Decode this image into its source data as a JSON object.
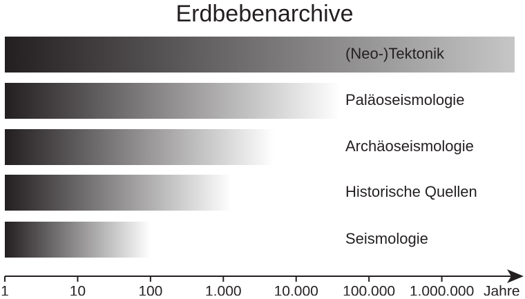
{
  "chart_data": {
    "type": "gradient-bar",
    "title": "Erdbebenarchive",
    "categories": [
      "(Neo-)Tektonik",
      "Paläoseismologie",
      "Archäoseismologie",
      "Historische Quellen",
      "Seismologie"
    ],
    "values": [
      10000000,
      40000,
      5000,
      1300,
      100
    ],
    "start_color": "#231f20",
    "end_colors": [
      "#c6c6c6",
      "#ffffff",
      "#ffffff",
      "#ffffff",
      "#ffffff"
    ],
    "x_label": "Jahre",
    "xscale": "log",
    "xlim": [
      1,
      10000000
    ],
    "xticks": [
      1,
      10,
      100,
      {
        "value": 1000,
        "label": "1.000"
      },
      {
        "value": 10000,
        "label": "10.000"
      },
      {
        "value": 100000,
        "label": "100.000"
      },
      {
        "value": 1000000,
        "label": "1.000.000"
      }
    ]
  }
}
